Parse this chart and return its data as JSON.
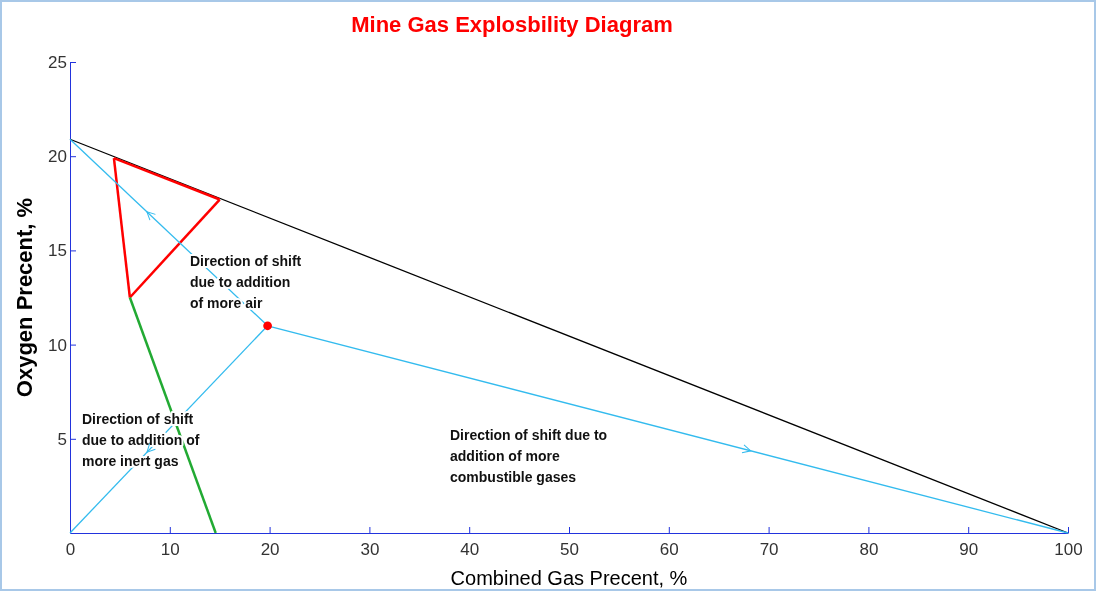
{
  "chart_data": {
    "type": "line",
    "title": "Mine Gas Explosbility Diagram",
    "xlabel": "Combined Gas Precent, %",
    "ylabel": "Oxygen Precent, %",
    "xlim": [
      0,
      100
    ],
    "xticks": [
      0,
      10,
      20,
      30,
      40,
      50,
      60,
      70,
      80,
      90,
      100
    ],
    "ylim": [
      0,
      25
    ],
    "yticks": [
      5,
      10,
      15,
      20,
      25
    ],
    "grid": false,
    "line_style": "solid",
    "series": [
      {
        "color": "#000000",
        "x": [
          0,
          100
        ],
        "values": [
          20.9,
          0
        ]
      },
      {
        "color": "#ff0000",
        "x": [
          4.4,
          15
        ],
        "values": [
          19.9,
          17.7
        ]
      },
      {
        "color": "#ff0000",
        "x": [
          15,
          6
        ],
        "values": [
          17.7,
          12.5
        ]
      },
      {
        "color": "#ff0000",
        "x": [
          6,
          4.4
        ],
        "values": [
          12.5,
          19.9
        ]
      },
      {
        "color": "#22aa33",
        "x": [
          6,
          14.6
        ],
        "values": [
          12.5,
          0
        ]
      },
      {
        "color": "#33bbee",
        "x": [
          19.8,
          0
        ],
        "values": [
          11,
          20.9
        ]
      },
      {
        "color": "#33bbee",
        "x": [
          19.8,
          0
        ],
        "values": [
          11,
          0
        ]
      },
      {
        "color": "#33bbee",
        "x": [
          19.8,
          100
        ],
        "values": [
          11,
          0
        ]
      },
      {
        "type": "scatter",
        "marker": "circle",
        "color": "#ff0000",
        "x": [
          19.8
        ],
        "values": [
          11
        ]
      }
    ],
    "annotations": [
      "Direction of shift\ndue to addition\nof more air",
      "Direction of shift\ndue to addition of\nmore inert gas",
      "Direction of shift due to\naddition of more\ncombustible gases"
    ]
  }
}
